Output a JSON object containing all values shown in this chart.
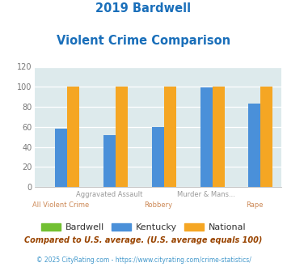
{
  "title_line1": "2019 Bardwell",
  "title_line2": "Violent Crime Comparison",
  "cat_labels_top": [
    "",
    "Aggravated Assault",
    "",
    "Murder & Mans...",
    ""
  ],
  "cat_labels_bot": [
    "All Violent Crime",
    "",
    "Robbery",
    "",
    "Rape"
  ],
  "bardwell_values": [
    0,
    0,
    0,
    0,
    0
  ],
  "kentucky_values": [
    58,
    52,
    60,
    99,
    83
  ],
  "national_values": [
    100,
    100,
    100,
    100,
    100
  ],
  "bar_color_bardwell": "#72c032",
  "bar_color_kentucky": "#4a90d9",
  "bar_color_national": "#f5a623",
  "bg_color": "#ddeaec",
  "ylim": [
    0,
    120
  ],
  "yticks": [
    0,
    20,
    40,
    60,
    80,
    100,
    120
  ],
  "legend_labels": [
    "Bardwell",
    "Kentucky",
    "National"
  ],
  "footnote1": "Compared to U.S. average. (U.S. average equals 100)",
  "footnote2": "© 2025 CityRating.com - https://www.cityrating.com/crime-statistics/",
  "title_color": "#1a6fba",
  "footnote1_color": "#994400",
  "footnote2_color": "#4499cc",
  "tick_label_color_top": "#999999",
  "tick_label_color_bot": "#cc8855",
  "legend_text_color": "#333333"
}
